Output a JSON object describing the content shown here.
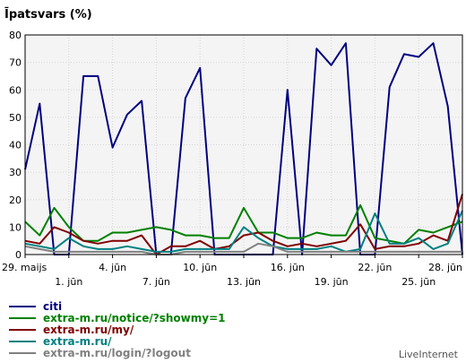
{
  "chart_data": {
    "type": "line",
    "title": "Īpatsvars (%)",
    "xlabel": "",
    "ylabel": "",
    "ylim": [
      0,
      80
    ],
    "yticks": [
      0,
      10,
      20,
      30,
      40,
      50,
      60,
      70,
      80
    ],
    "grid": true,
    "legend_position": "bottom-left",
    "brand": "LiveInternet",
    "x_tick_labels": [
      {
        "index": 0,
        "label": "29. maijs"
      },
      {
        "index": 3,
        "label": "1. jūn"
      },
      {
        "index": 6,
        "label": "4. jūn"
      },
      {
        "index": 9,
        "label": "7. jūn"
      },
      {
        "index": 12,
        "label": "10. jūn"
      },
      {
        "index": 15,
        "label": "13. jūn"
      },
      {
        "index": 18,
        "label": "16. jūn"
      },
      {
        "index": 21,
        "label": "19. jūn"
      },
      {
        "index": 24,
        "label": "22. jūn"
      },
      {
        "index": 27,
        "label": "25. jūn"
      },
      {
        "index": 30,
        "label": "28. jūn"
      }
    ],
    "series": [
      {
        "name": "citi",
        "color": "#000080",
        "values": [
          31,
          55,
          0,
          0,
          65,
          65,
          39,
          51,
          56,
          0,
          0,
          57,
          68,
          0,
          0,
          0,
          0,
          0,
          60,
          0,
          75,
          69,
          77,
          0,
          0,
          61,
          73,
          72,
          77,
          54,
          0
        ]
      },
      {
        "name": "extra-m.ru/notice/?showmy=1",
        "color": "#008000",
        "values": [
          12,
          7,
          17,
          10,
          5,
          5,
          8,
          8,
          9,
          10,
          9,
          7,
          7,
          6,
          6,
          17,
          8,
          8,
          6,
          6,
          8,
          7,
          7,
          18,
          6,
          5,
          4,
          9,
          8,
          10,
          12
        ]
      },
      {
        "name": "extra-m.ru/my/",
        "color": "#800000",
        "values": [
          5,
          4,
          10,
          8,
          5,
          4,
          5,
          5,
          7,
          0,
          3,
          3,
          5,
          2,
          3,
          7,
          8,
          5,
          3,
          4,
          3,
          4,
          5,
          11,
          2,
          3,
          3,
          4,
          7,
          5,
          22
        ]
      },
      {
        "name": "extra-m.ru/",
        "color": "#008080",
        "values": [
          4,
          3,
          2,
          6,
          3,
          2,
          2,
          3,
          2,
          1,
          1,
          2,
          2,
          2,
          2,
          10,
          6,
          3,
          2,
          2,
          2,
          3,
          1,
          2,
          15,
          4,
          4,
          6,
          2,
          4,
          16
        ]
      },
      {
        "name": "extra-m.ru/login/?logout",
        "color": "#808080",
        "values": [
          3,
          2,
          1,
          1,
          1,
          1,
          1,
          1,
          1,
          0,
          0,
          1,
          1,
          1,
          1,
          1,
          4,
          3,
          1,
          1,
          1,
          1,
          1,
          1,
          1,
          1,
          1,
          1,
          1,
          1,
          1
        ]
      }
    ]
  }
}
